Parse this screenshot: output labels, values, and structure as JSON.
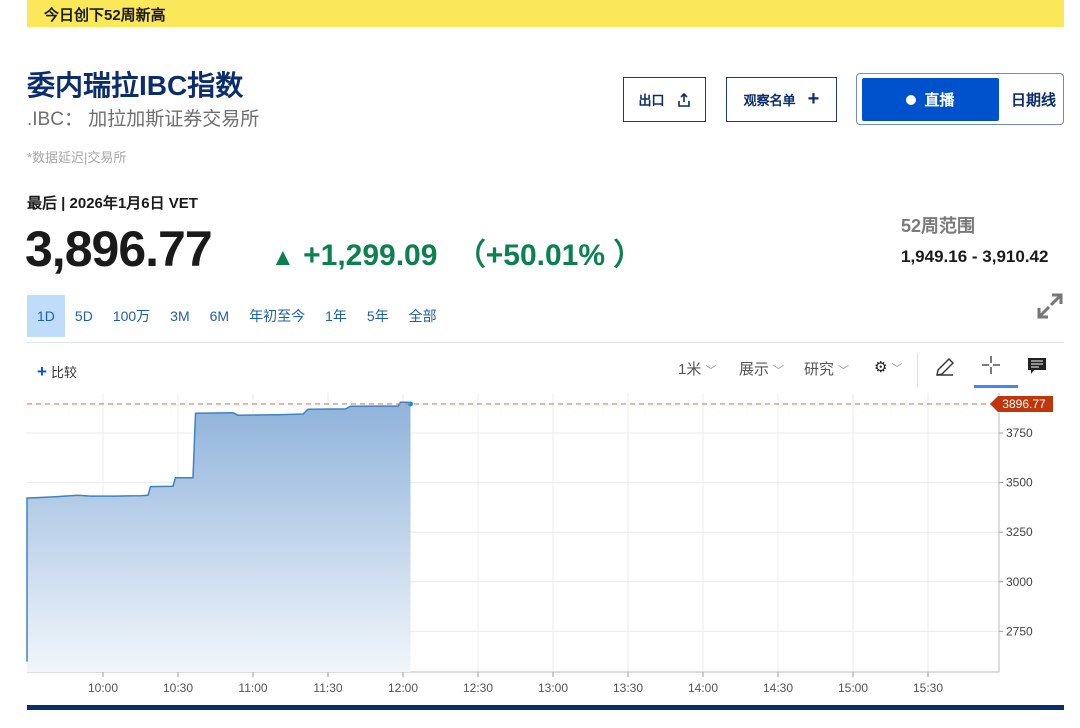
{
  "banner": "今日创下52周新高",
  "header": {
    "title": "委内瑞拉IBC指数",
    "subtitle": ".IBC： 加拉加斯证券交易所",
    "delay_note": "*数据延迟|交易所"
  },
  "buttons": {
    "export": "出口",
    "watchlist": "观察名单",
    "live": "直播",
    "daily": "日期线"
  },
  "quote": {
    "last_label": "最后 | 2026年1月6日 VET",
    "price": "3,896.77",
    "change": "+1,299.09",
    "change_pct": "（+50.01%  ）",
    "direction": "up"
  },
  "range": {
    "label": "52周范围",
    "value": "1,949.16 - 3,910.42"
  },
  "periods": [
    "1D",
    "5D",
    "100万",
    "3M",
    "6M",
    "年初至今",
    "1年",
    "5年",
    "全部"
  ],
  "selected_period": "1D",
  "toolbar": {
    "compare": "比较",
    "interval": "1米",
    "display": "展示",
    "research": "研究"
  },
  "colors": {
    "accent": "#0052cc",
    "up": "#0b8150",
    "line": "#3d83c4",
    "price_tag": "#c0360c",
    "banner": "#fbe85a"
  },
  "chart_data": {
    "type": "area",
    "x_ticks": [
      "10:00",
      "10:30",
      "11:00",
      "11:30",
      "12:00",
      "12:30",
      "13:00",
      "13:30",
      "14:00",
      "14:30",
      "15:00",
      "15:30"
    ],
    "y_ticks": [
      2750,
      3000,
      3250,
      3500,
      3750
    ],
    "ylim": [
      2545,
      3952
    ],
    "xlim": [
      "09:30",
      "16:00"
    ],
    "last_value_label": "3896.77",
    "reference_line": 3896.77,
    "grid": true,
    "points": [
      [
        "09:30",
        2597.68
      ],
      [
        "09:30",
        3422
      ],
      [
        "09:40",
        3428
      ],
      [
        "09:50",
        3436
      ],
      [
        "09:55",
        3432
      ],
      [
        "10:05",
        3432
      ],
      [
        "10:15",
        3434
      ],
      [
        "10:18",
        3436
      ],
      [
        "10:19",
        3480
      ],
      [
        "10:28",
        3482
      ],
      [
        "10:29",
        3525
      ],
      [
        "10:36",
        3525
      ],
      [
        "10:37",
        3850
      ],
      [
        "10:52",
        3852
      ],
      [
        "10:54",
        3840
      ],
      [
        "11:10",
        3842
      ],
      [
        "11:20",
        3846
      ],
      [
        "11:22",
        3870
      ],
      [
        "11:37",
        3872
      ],
      [
        "11:39",
        3885
      ],
      [
        "11:58",
        3886
      ],
      [
        "11:59",
        3905
      ],
      [
        "12:02",
        3905
      ],
      [
        "12:03",
        3896.77
      ]
    ]
  }
}
